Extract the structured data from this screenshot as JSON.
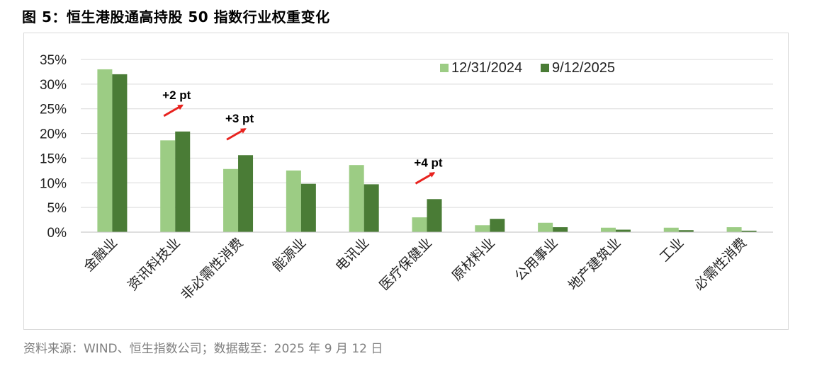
{
  "figure": {
    "title": "图 5：恒生港股通高持股 50 指数行业权重变化",
    "source": "资料来源：WIND、恒生指数公司；数据截至：2025 年 9 月 12 日"
  },
  "chart_data": {
    "type": "bar",
    "title": "",
    "xlabel": "",
    "ylabel": "",
    "ylim": [
      0,
      35
    ],
    "yticks": [
      "0%",
      "5%",
      "10%",
      "15%",
      "20%",
      "25%",
      "30%",
      "35%"
    ],
    "grid": true,
    "legend_position": "top-right",
    "categories": [
      "金融业",
      "资讯科技业",
      "非必需性消费",
      "能源业",
      "电讯业",
      "医疗保健业",
      "原材料业",
      "公用事业",
      "地产建筑业",
      "工业",
      "必需性消费"
    ],
    "series": [
      {
        "name": "12/31/2024",
        "color": "#9ccc84",
        "values": [
          33.0,
          18.6,
          12.8,
          12.5,
          13.6,
          3.0,
          1.4,
          1.9,
          0.9,
          0.9,
          1.0
        ]
      },
      {
        "name": "9/12/2025",
        "color": "#4a7c36",
        "values": [
          32.0,
          20.4,
          15.6,
          9.8,
          9.7,
          6.7,
          2.7,
          1.0,
          0.5,
          0.4,
          0.3
        ]
      }
    ],
    "annotations": [
      {
        "text": "+2 pt",
        "category": "资讯科技业"
      },
      {
        "text": "+3 pt",
        "category": "非必需性消费"
      },
      {
        "text": "+4 pt",
        "category": "医疗保健业"
      }
    ]
  }
}
